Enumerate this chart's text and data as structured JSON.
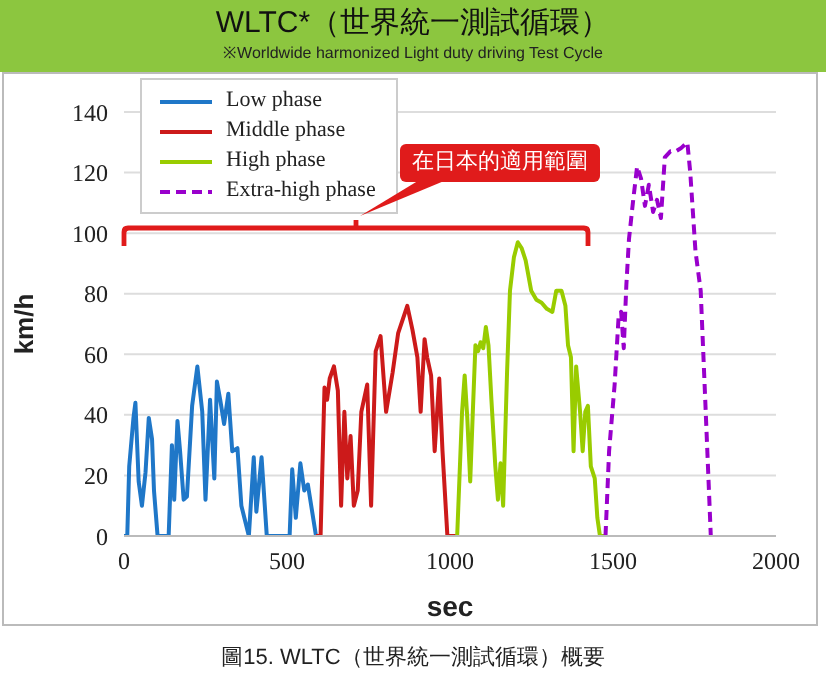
{
  "chart_data": {
    "type": "line",
    "title": "WLTC*（世界統一測試循環）",
    "subtitle": "※Worldwide harmonized Light duty driving  Test Cycle",
    "xlabel": "sec",
    "ylabel": "km/h",
    "annotations": [
      "在日本的適用範圍",
      "圖15. WLTC（世界統一測試循環）概要"
    ],
    "xlim": [
      0,
      2000
    ],
    "xticks": [
      0,
      500,
      1000,
      1500,
      2000
    ],
    "ylim": [
      0,
      140
    ],
    "yticks": [
      0,
      20,
      40,
      60,
      80,
      100,
      120,
      140
    ],
    "grid": "y",
    "legend": "top left",
    "marker": "none",
    "series": [
      {
        "name": "Low phase",
        "color": "#1f77c8",
        "line_style": "solid",
        "x": [
          0,
          10,
          16,
          29,
          35,
          45,
          55,
          66,
          76,
          86,
          92,
          103,
          137,
          147,
          154,
          164,
          172,
          183,
          193,
          209,
          225,
          240,
          250,
          264,
          277,
          285,
          295,
          307,
          320,
          332,
          348,
          360,
          383,
          398,
          406,
          422,
          438,
          508,
          516,
          527,
          541,
          553,
          564,
          589
        ],
        "values": [
          0,
          0,
          23,
          39,
          44,
          18,
          10,
          21,
          39,
          32,
          15,
          0,
          0,
          30,
          12,
          38,
          28,
          12,
          13,
          43,
          56,
          41,
          12,
          45,
          19,
          51,
          45,
          37,
          47,
          28,
          29,
          10,
          0,
          26,
          8,
          26,
          0,
          0,
          22,
          6,
          24,
          15,
          17,
          0
        ]
      },
      {
        "name": "Middle phase",
        "color": "#cc1a1a",
        "line_style": "solid",
        "x": [
          589,
          603,
          615,
          623,
          631,
          644,
          656,
          666,
          676,
          685,
          695,
          705,
          717,
          728,
          746,
          758,
          772,
          787,
          804,
          824,
          841,
          869,
          885,
          900,
          910,
          922,
          930,
          942,
          953,
          967,
          977,
          992,
          1022
        ],
        "values": [
          0,
          0,
          49,
          45,
          52,
          56,
          48,
          10,
          41,
          19,
          33,
          10,
          15,
          41,
          50,
          10,
          61,
          66,
          41,
          54,
          67,
          76,
          68,
          59,
          41,
          65,
          59,
          53,
          28,
          52,
          28,
          0,
          0
        ]
      },
      {
        "name": "High phase",
        "color": "#99cc00",
        "line_style": "solid",
        "x": [
          1022,
          1037,
          1045,
          1053,
          1062,
          1070,
          1078,
          1086,
          1094,
          1102,
          1110,
          1118,
          1127,
          1139,
          1147,
          1155,
          1163,
          1175,
          1184,
          1196,
          1208,
          1220,
          1232,
          1249,
          1265,
          1281,
          1297,
          1314,
          1326,
          1342,
          1354,
          1362,
          1371,
          1379,
          1387,
          1399,
          1407,
          1415,
          1423,
          1432,
          1444,
          1452,
          1460,
          1477
        ],
        "values": [
          0,
          41,
          53,
          39,
          18,
          41,
          63,
          61,
          64,
          62,
          69,
          63,
          45,
          23,
          12,
          24,
          10,
          54,
          81,
          92,
          97,
          95,
          91,
          81,
          78,
          77,
          75,
          74,
          81,
          81,
          76,
          63,
          59,
          28,
          56,
          41,
          28,
          41,
          43,
          23,
          19,
          6,
          0,
          0
        ]
      },
      {
        "name": "Extra-high phase",
        "color": "#9900cc",
        "line_style": "dashed",
        "x": [
          1477,
          1488,
          1505,
          1517,
          1525,
          1533,
          1541,
          1549,
          1562,
          1574,
          1586,
          1598,
          1610,
          1623,
          1635,
          1647,
          1659,
          1676,
          1692,
          1708,
          1728,
          1737,
          1753,
          1769,
          1781,
          1800
        ],
        "values": [
          0,
          28,
          50,
          72,
          74,
          62,
          83,
          98,
          111,
          122,
          118,
          109,
          116,
          107,
          111,
          105,
          125,
          127,
          127,
          128,
          130,
          120,
          94,
          81,
          50,
          0
        ]
      }
    ]
  }
}
